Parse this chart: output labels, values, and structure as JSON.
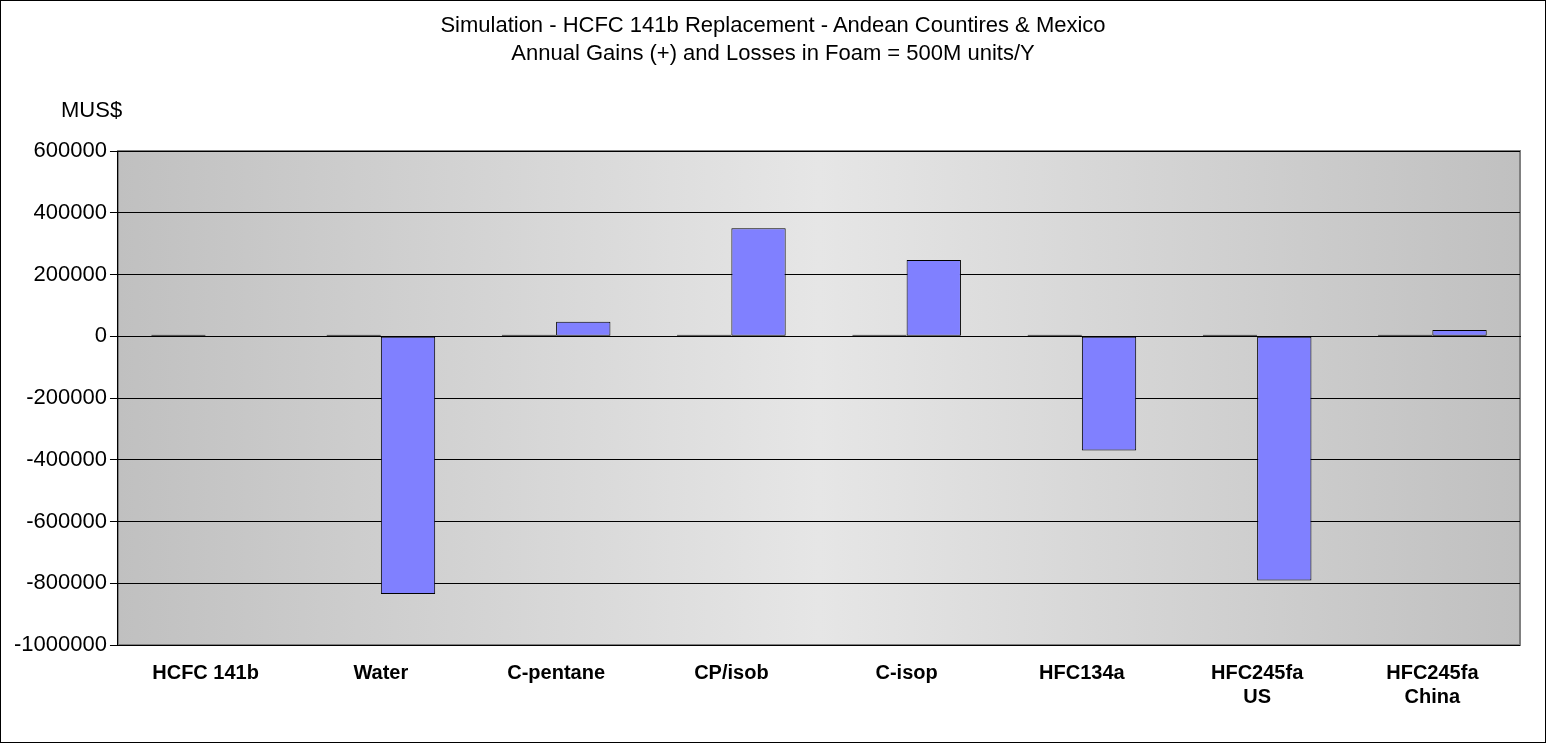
{
  "chart_data": {
    "type": "bar",
    "title": "Simulation - HCFC 141b Replacement - Andean Countires & Mexico",
    "subtitle": "Annual Gains (+)  and Losses in Foam = 500M  units/Y",
    "ylabel": "MUS$",
    "categories": [
      "HCFC 141b",
      "Water",
      "C-pentane",
      "CP/isob",
      "C-isop",
      "HFC134a",
      "HFC245fa\nUS",
      "HFC245fa\nChina"
    ],
    "series": [
      {
        "color": "#000000",
        "values": [
          5000,
          5000,
          5000,
          5000,
          5000,
          5000,
          5000,
          5000
        ]
      },
      {
        "color": "#8080ff",
        "values": [
          0,
          -835000,
          47000,
          350000,
          247000,
          -370000,
          -791000,
          20000
        ]
      }
    ],
    "ylim": [
      -1000000,
      600000
    ],
    "yticks": [
      -1000000,
      -800000,
      -600000,
      -400000,
      -200000,
      0,
      200000,
      400000,
      600000
    ],
    "grid": "y",
    "legend": false
  }
}
